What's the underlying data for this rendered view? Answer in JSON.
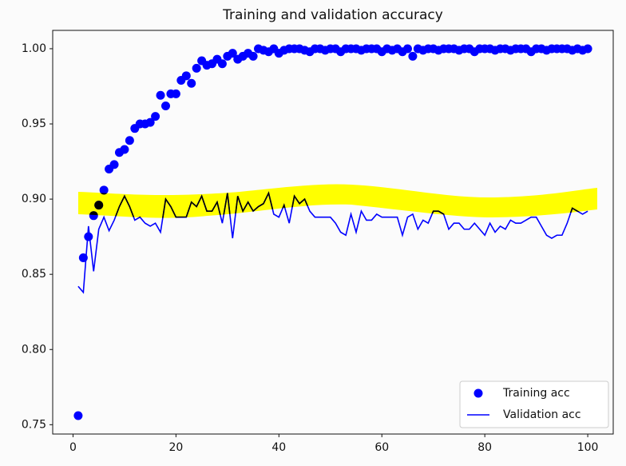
{
  "chart_data": {
    "type": "line",
    "title": "Training and validation accuracy",
    "x": [
      1,
      2,
      3,
      4,
      5,
      6,
      7,
      8,
      9,
      10,
      11,
      12,
      13,
      14,
      15,
      16,
      17,
      18,
      19,
      20,
      21,
      22,
      23,
      24,
      25,
      26,
      27,
      28,
      29,
      30,
      31,
      32,
      33,
      34,
      35,
      36,
      37,
      38,
      39,
      40,
      41,
      42,
      43,
      44,
      45,
      46,
      47,
      48,
      49,
      50,
      51,
      52,
      53,
      54,
      55,
      56,
      57,
      58,
      59,
      60,
      61,
      62,
      63,
      64,
      65,
      66,
      67,
      68,
      69,
      70,
      71,
      72,
      73,
      74,
      75,
      76,
      77,
      78,
      79,
      80,
      81,
      82,
      83,
      84,
      85,
      86,
      87,
      88,
      89,
      90,
      91,
      92,
      93,
      94,
      95,
      96,
      97,
      98,
      99,
      100
    ],
    "series": [
      {
        "name": "Training acc",
        "color": "#0000ff",
        "mode": "markers",
        "values": [
          0.756,
          0.861,
          0.875,
          0.889,
          0.896,
          0.906,
          0.92,
          0.923,
          0.931,
          0.933,
          0.939,
          0.947,
          0.95,
          0.95,
          0.951,
          0.955,
          0.969,
          0.962,
          0.97,
          0.97,
          0.979,
          0.982,
          0.977,
          0.987,
          0.992,
          0.989,
          0.99,
          0.993,
          0.99,
          0.995,
          0.997,
          0.993,
          0.995,
          0.997,
          0.995,
          1.0,
          0.999,
          0.998,
          1.0,
          0.997,
          0.999,
          1.0,
          1.0,
          1.0,
          0.999,
          0.998,
          1.0,
          1.0,
          0.999,
          1.0,
          1.0,
          0.998,
          1.0,
          1.0,
          1.0,
          0.999,
          1.0,
          1.0,
          1.0,
          0.998,
          1.0,
          0.999,
          1.0,
          0.998,
          1.0,
          0.995,
          1.0,
          0.999,
          1.0,
          1.0,
          0.999,
          1.0,
          1.0,
          1.0,
          0.999,
          1.0,
          1.0,
          0.998,
          1.0,
          1.0,
          1.0,
          0.999,
          1.0,
          1.0,
          0.999,
          1.0,
          1.0,
          1.0,
          0.998,
          1.0,
          1.0,
          0.999,
          1.0,
          1.0,
          1.0,
          1.0,
          0.999,
          1.0,
          0.999,
          1.0
        ]
      },
      {
        "name": "Validation acc",
        "color": "#0000ff",
        "mode": "lines",
        "values": [
          0.842,
          0.838,
          0.882,
          0.852,
          0.88,
          0.888,
          0.879,
          0.886,
          0.895,
          0.902,
          0.895,
          0.886,
          0.888,
          0.884,
          0.882,
          0.884,
          0.878,
          0.9,
          0.895,
          0.888,
          0.888,
          0.888,
          0.898,
          0.895,
          0.902,
          0.892,
          0.892,
          0.898,
          0.884,
          0.904,
          0.874,
          0.902,
          0.892,
          0.898,
          0.892,
          0.895,
          0.897,
          0.904,
          0.89,
          0.888,
          0.896,
          0.884,
          0.902,
          0.897,
          0.9,
          0.892,
          0.888,
          0.888,
          0.888,
          0.888,
          0.884,
          0.878,
          0.876,
          0.89,
          0.878,
          0.892,
          0.886,
          0.886,
          0.89,
          0.888,
          0.888,
          0.888,
          0.888,
          0.876,
          0.888,
          0.89,
          0.88,
          0.886,
          0.884,
          0.892,
          0.892,
          0.89,
          0.88,
          0.884,
          0.884,
          0.88,
          0.88,
          0.884,
          0.88,
          0.876,
          0.884,
          0.878,
          0.882,
          0.88,
          0.886,
          0.884,
          0.884,
          0.886,
          0.888,
          0.888,
          0.882,
          0.876,
          0.874,
          0.876,
          0.876,
          0.884,
          0.894,
          0.892,
          0.89,
          0.892
        ]
      }
    ],
    "xlim": [
      -3.95,
      104.95
    ],
    "xticks": [
      0,
      20,
      40,
      60,
      80,
      100
    ],
    "ylim": [
      0.7438,
      1.0122
    ],
    "yticks": [
      {
        "value": 0.75,
        "label": "0.75"
      },
      {
        "value": 0.8,
        "label": "0.80"
      },
      {
        "value": 0.85,
        "label": "0.85"
      },
      {
        "value": 0.9,
        "label": "0.90"
      },
      {
        "value": 0.95,
        "label": "0.95"
      },
      {
        "value": 1.0,
        "label": "1.00"
      }
    ],
    "grid": false,
    "legend": "lower right"
  }
}
